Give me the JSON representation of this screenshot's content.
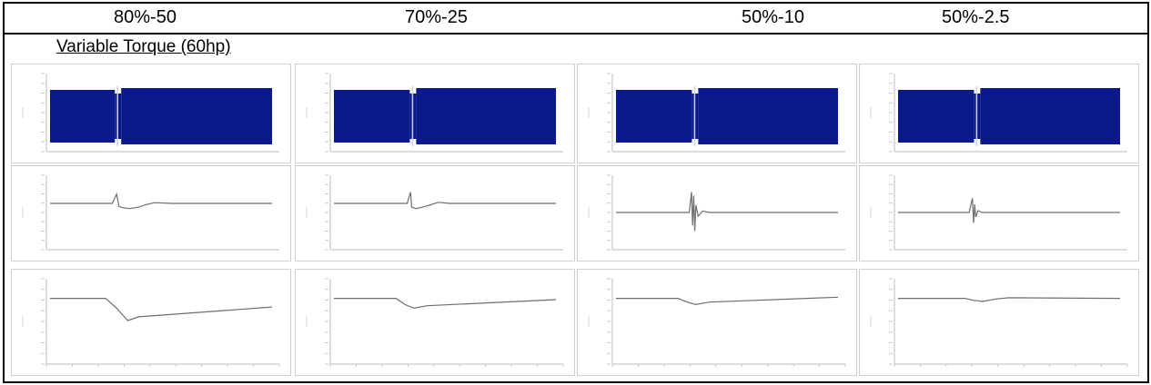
{
  "columns": [
    "80%-50",
    "70%-25",
    "50%-10",
    "50%-2.5"
  ],
  "section_label": "Variable Torque (60hp)",
  "colors": {
    "waveform": "#0a1a8c",
    "trace": "#6e6e6e",
    "gap": "#ccd0e8"
  },
  "chart_data": [
    {
      "column": "80%-50",
      "row": "current",
      "type": "area",
      "trace": "dense-oscillation",
      "gap_at": 0.3
    },
    {
      "column": "70%-25",
      "row": "current",
      "type": "area",
      "trace": "dense-oscillation",
      "gap_at": 0.35
    },
    {
      "column": "50%-10",
      "row": "current",
      "type": "area",
      "trace": "dense-oscillation",
      "gap_at": 0.35
    },
    {
      "column": "50%-2.5",
      "row": "current",
      "type": "area",
      "trace": "dense-oscillation",
      "gap_at": 0.35
    },
    {
      "column": "80%-50",
      "row": "torque",
      "type": "line",
      "x": [
        0,
        0.28,
        0.3,
        0.31,
        0.33,
        0.36,
        0.4,
        0.43,
        0.47,
        0.55,
        1.0
      ],
      "y": [
        0,
        0,
        0.25,
        -0.08,
        -0.12,
        -0.14,
        -0.1,
        -0.04,
        0.02,
        0,
        0
      ]
    },
    {
      "column": "70%-25",
      "row": "torque",
      "type": "line",
      "x": [
        0,
        0.33,
        0.345,
        0.35,
        0.37,
        0.4,
        0.43,
        0.47,
        0.52,
        1.0
      ],
      "y": [
        0,
        0,
        0.3,
        -0.1,
        -0.14,
        -0.1,
        -0.05,
        0.03,
        0,
        0
      ]
    },
    {
      "column": "50%-10",
      "row": "torque",
      "type": "line",
      "x": [
        0,
        0.33,
        0.34,
        0.345,
        0.35,
        0.355,
        0.36,
        0.37,
        0.39,
        0.42,
        1.0
      ],
      "y": [
        0,
        0,
        0.55,
        -0.35,
        0.45,
        -0.5,
        0.2,
        -0.1,
        0.04,
        0,
        0
      ]
    },
    {
      "column": "50%-2.5",
      "row": "torque",
      "type": "line",
      "x": [
        0,
        0.32,
        0.335,
        0.34,
        0.345,
        0.35,
        0.36,
        0.38,
        1.0
      ],
      "y": [
        0,
        0,
        0.38,
        -0.28,
        0.22,
        -0.12,
        0.05,
        0,
        0
      ]
    },
    {
      "column": "80%-50",
      "row": "speed",
      "type": "line",
      "x": [
        0,
        0.25,
        0.3,
        0.35,
        0.4,
        1.0
      ],
      "y": [
        1.0,
        1.0,
        0.84,
        0.64,
        0.7,
        0.86
      ]
    },
    {
      "column": "70%-25",
      "row": "speed",
      "type": "line",
      "x": [
        0,
        0.28,
        0.32,
        0.36,
        0.42,
        1.0
      ],
      "y": [
        1.0,
        1.0,
        0.9,
        0.84,
        0.88,
        0.98
      ]
    },
    {
      "column": "50%-10",
      "row": "speed",
      "type": "line",
      "x": [
        0,
        0.28,
        0.32,
        0.36,
        0.42,
        1.0
      ],
      "y": [
        1.0,
        1.0,
        0.94,
        0.9,
        0.94,
        1.02
      ]
    },
    {
      "column": "50%-2.5",
      "row": "speed",
      "type": "line",
      "x": [
        0,
        0.3,
        0.34,
        0.38,
        0.44,
        0.5,
        1.0
      ],
      "y": [
        1.0,
        1.0,
        0.97,
        0.95,
        0.99,
        1.01,
        1.0
      ]
    }
  ]
}
